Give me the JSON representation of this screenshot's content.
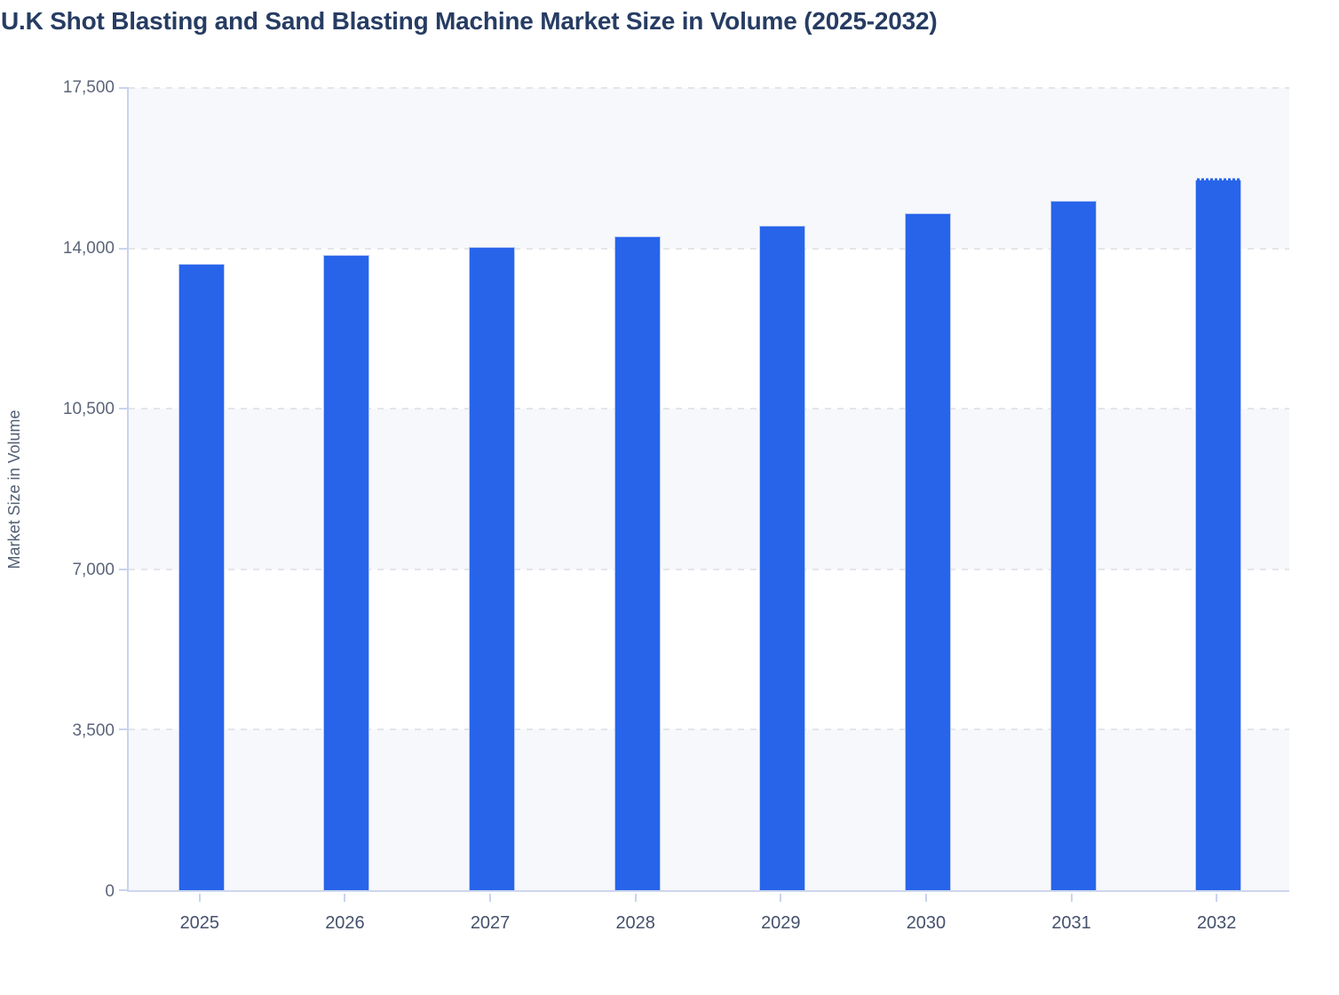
{
  "page": {
    "title": "U.K Shot Blasting and Sand Blasting Machine Market Size in Volume (2025-2032)"
  },
  "chart_data": {
    "type": "bar",
    "title": "U.K Shot Blasting and Sand Blasting Machine Market Size in Volume (2025-2032)",
    "categories": [
      "2025",
      "2026",
      "2027",
      "2028",
      "2029",
      "2030",
      "2031",
      "2032"
    ],
    "values": [
      13670,
      13860,
      14040,
      14270,
      14500,
      14760,
      15040,
      15540
    ],
    "xlabel": "",
    "ylabel": "Market Size in Volume",
    "ylim": [
      0,
      17500
    ],
    "ytick_step": 3500,
    "ytick_labels": [
      "0",
      "3,500",
      "7,000",
      "10,500",
      "14,000",
      "17,500"
    ],
    "grid": "horizontal-dashed",
    "legend": "none",
    "plot_bands": "alternating horizontal bands, light starting from bottom interval",
    "bar_color": "#2764ea",
    "bar_border_color": "#b9cbf5",
    "band_light_color": "#f7f8fb",
    "gridline_color": "#e3e5e9",
    "axis_line_color": "#c9d3ee",
    "title_color": "#263c63",
    "dotted_top_year": "2032"
  }
}
